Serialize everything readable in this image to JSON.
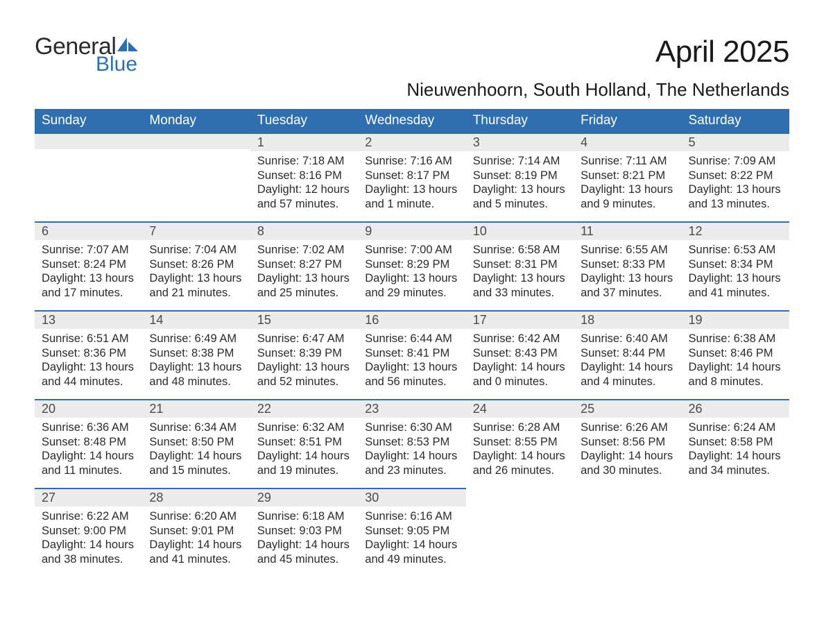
{
  "brand": {
    "line1": "General",
    "line2": "Blue",
    "line1_color": "#2b2b2b",
    "line2_color": "#2f6fb0"
  },
  "title": "April 2025",
  "subtitle": "Nieuwenhoorn, South Holland, The Netherlands",
  "colors": {
    "header_bg": "#2f6fb0",
    "header_fg": "#ffffff",
    "daynum_bg": "#ececec",
    "rule": "#2f6fb0",
    "text": "#2b2b2b"
  },
  "day_headers": [
    "Sunday",
    "Monday",
    "Tuesday",
    "Wednesday",
    "Thursday",
    "Friday",
    "Saturday"
  ],
  "weeks": [
    [
      null,
      null,
      {
        "n": "1",
        "sunrise": "7:18 AM",
        "sunset": "8:16 PM",
        "daylight": "12 hours and 57 minutes."
      },
      {
        "n": "2",
        "sunrise": "7:16 AM",
        "sunset": "8:17 PM",
        "daylight": "13 hours and 1 minute."
      },
      {
        "n": "3",
        "sunrise": "7:14 AM",
        "sunset": "8:19 PM",
        "daylight": "13 hours and 5 minutes."
      },
      {
        "n": "4",
        "sunrise": "7:11 AM",
        "sunset": "8:21 PM",
        "daylight": "13 hours and 9 minutes."
      },
      {
        "n": "5",
        "sunrise": "7:09 AM",
        "sunset": "8:22 PM",
        "daylight": "13 hours and 13 minutes."
      }
    ],
    [
      {
        "n": "6",
        "sunrise": "7:07 AM",
        "sunset": "8:24 PM",
        "daylight": "13 hours and 17 minutes."
      },
      {
        "n": "7",
        "sunrise": "7:04 AM",
        "sunset": "8:26 PM",
        "daylight": "13 hours and 21 minutes."
      },
      {
        "n": "8",
        "sunrise": "7:02 AM",
        "sunset": "8:27 PM",
        "daylight": "13 hours and 25 minutes."
      },
      {
        "n": "9",
        "sunrise": "7:00 AM",
        "sunset": "8:29 PM",
        "daylight": "13 hours and 29 minutes."
      },
      {
        "n": "10",
        "sunrise": "6:58 AM",
        "sunset": "8:31 PM",
        "daylight": "13 hours and 33 minutes."
      },
      {
        "n": "11",
        "sunrise": "6:55 AM",
        "sunset": "8:33 PM",
        "daylight": "13 hours and 37 minutes."
      },
      {
        "n": "12",
        "sunrise": "6:53 AM",
        "sunset": "8:34 PM",
        "daylight": "13 hours and 41 minutes."
      }
    ],
    [
      {
        "n": "13",
        "sunrise": "6:51 AM",
        "sunset": "8:36 PM",
        "daylight": "13 hours and 44 minutes."
      },
      {
        "n": "14",
        "sunrise": "6:49 AM",
        "sunset": "8:38 PM",
        "daylight": "13 hours and 48 minutes."
      },
      {
        "n": "15",
        "sunrise": "6:47 AM",
        "sunset": "8:39 PM",
        "daylight": "13 hours and 52 minutes."
      },
      {
        "n": "16",
        "sunrise": "6:44 AM",
        "sunset": "8:41 PM",
        "daylight": "13 hours and 56 minutes."
      },
      {
        "n": "17",
        "sunrise": "6:42 AM",
        "sunset": "8:43 PM",
        "daylight": "14 hours and 0 minutes."
      },
      {
        "n": "18",
        "sunrise": "6:40 AM",
        "sunset": "8:44 PM",
        "daylight": "14 hours and 4 minutes."
      },
      {
        "n": "19",
        "sunrise": "6:38 AM",
        "sunset": "8:46 PM",
        "daylight": "14 hours and 8 minutes."
      }
    ],
    [
      {
        "n": "20",
        "sunrise": "6:36 AM",
        "sunset": "8:48 PM",
        "daylight": "14 hours and 11 minutes."
      },
      {
        "n": "21",
        "sunrise": "6:34 AM",
        "sunset": "8:50 PM",
        "daylight": "14 hours and 15 minutes."
      },
      {
        "n": "22",
        "sunrise": "6:32 AM",
        "sunset": "8:51 PM",
        "daylight": "14 hours and 19 minutes."
      },
      {
        "n": "23",
        "sunrise": "6:30 AM",
        "sunset": "8:53 PM",
        "daylight": "14 hours and 23 minutes."
      },
      {
        "n": "24",
        "sunrise": "6:28 AM",
        "sunset": "8:55 PM",
        "daylight": "14 hours and 26 minutes."
      },
      {
        "n": "25",
        "sunrise": "6:26 AM",
        "sunset": "8:56 PM",
        "daylight": "14 hours and 30 minutes."
      },
      {
        "n": "26",
        "sunrise": "6:24 AM",
        "sunset": "8:58 PM",
        "daylight": "14 hours and 34 minutes."
      }
    ],
    [
      {
        "n": "27",
        "sunrise": "6:22 AM",
        "sunset": "9:00 PM",
        "daylight": "14 hours and 38 minutes."
      },
      {
        "n": "28",
        "sunrise": "6:20 AM",
        "sunset": "9:01 PM",
        "daylight": "14 hours and 41 minutes."
      },
      {
        "n": "29",
        "sunrise": "6:18 AM",
        "sunset": "9:03 PM",
        "daylight": "14 hours and 45 minutes."
      },
      {
        "n": "30",
        "sunrise": "6:16 AM",
        "sunset": "9:05 PM",
        "daylight": "14 hours and 49 minutes."
      },
      null,
      null,
      null
    ]
  ],
  "labels": {
    "sunrise": "Sunrise: ",
    "sunset": "Sunset: ",
    "daylight": "Daylight: "
  }
}
